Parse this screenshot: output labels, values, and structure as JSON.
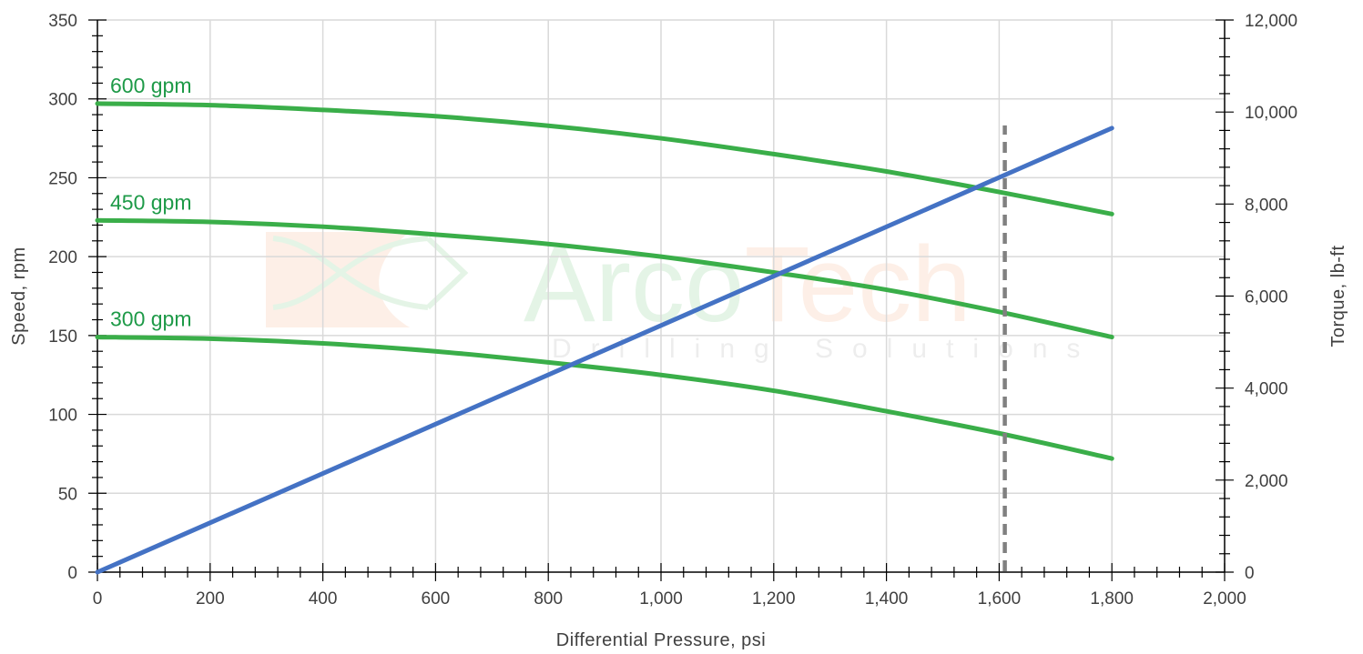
{
  "chart_data": {
    "type": "line",
    "title": "",
    "xlabel": "Differential Pressure, psi",
    "ylabel": "Speed, rpm",
    "y2label": "Torque, lb-ft",
    "xlim": [
      0,
      2000
    ],
    "ylim": [
      0,
      350
    ],
    "y2lim": [
      0,
      12000
    ],
    "x_ticks": [
      0,
      200,
      400,
      600,
      800,
      1000,
      1200,
      1400,
      1600,
      1800,
      2000
    ],
    "x_tick_labels": [
      "0",
      "200",
      "400",
      "600",
      "800",
      "1,000",
      "1,200",
      "1,400",
      "1,600",
      "1,800",
      "2,000"
    ],
    "y_ticks": [
      0,
      50,
      100,
      150,
      200,
      250,
      300,
      350
    ],
    "y_tick_labels": [
      "0",
      "50",
      "100",
      "150",
      "200",
      "250",
      "300",
      "350"
    ],
    "y2_ticks": [
      0,
      2000,
      4000,
      6000,
      8000,
      10000,
      12000
    ],
    "y2_tick_labels": [
      "0",
      "2,000",
      "4,000",
      "6,000",
      "8,000",
      "10,000",
      "12,000"
    ],
    "grid": true,
    "series": [
      {
        "name": "600 gpm",
        "axis": "left",
        "color": "#3aae49",
        "x": [
          0,
          200,
          400,
          600,
          800,
          1000,
          1200,
          1400,
          1600,
          1800
        ],
        "values": [
          297,
          296,
          293,
          289,
          283,
          275,
          265,
          254,
          241,
          227
        ]
      },
      {
        "name": "450 gpm",
        "axis": "left",
        "color": "#3aae49",
        "x": [
          0,
          200,
          400,
          600,
          800,
          1000,
          1200,
          1400,
          1600,
          1800
        ],
        "values": [
          223,
          222,
          219,
          214,
          208,
          200,
          190,
          179,
          165,
          149
        ]
      },
      {
        "name": "300 gpm",
        "axis": "left",
        "color": "#3aae49",
        "x": [
          0,
          200,
          400,
          600,
          800,
          1000,
          1200,
          1400,
          1600,
          1800
        ],
        "values": [
          149,
          148,
          145,
          140,
          133,
          125,
          115,
          102,
          88,
          72
        ]
      },
      {
        "name": "",
        "axis": "right",
        "color": "#4472c4",
        "x": [
          0,
          1800
        ],
        "values": [
          0,
          9650
        ]
      }
    ],
    "reference_line": {
      "orientation": "vertical",
      "x": 1610,
      "y2_top": 9650,
      "style": "dashed",
      "color": "#808080"
    },
    "label_color": "#1e9a48",
    "watermark": {
      "brand": "ArcoTech",
      "tagline": "Drilling Solutions"
    }
  }
}
